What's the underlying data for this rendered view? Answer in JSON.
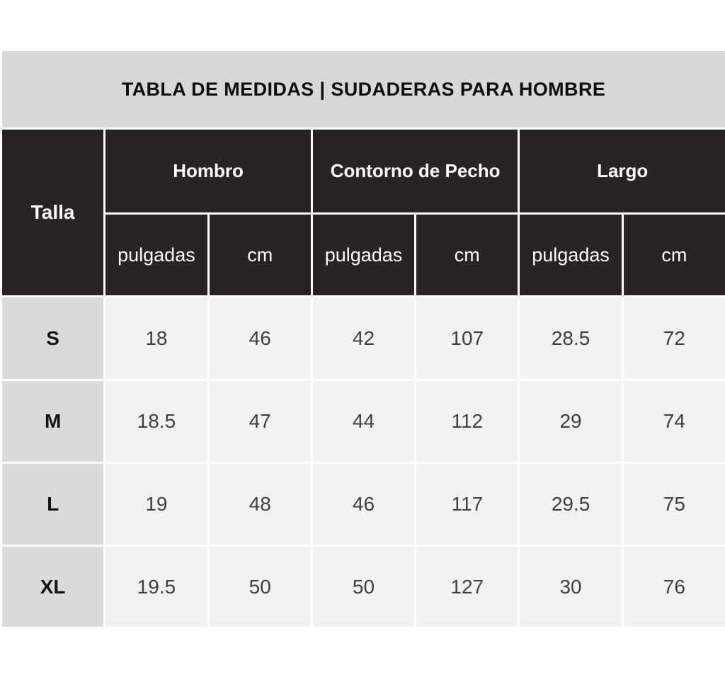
{
  "title": "TABLA DE MEDIDAS | SUDADERAS PARA HOMBRE",
  "table": {
    "corner_label": "Talla",
    "groups": [
      {
        "label": "Hombro"
      },
      {
        "label": "Contorno de Pecho"
      },
      {
        "label": "Largo"
      }
    ],
    "unit_labels": [
      "pulgadas",
      "cm",
      "pulgadas",
      "cm",
      "pulgadas",
      "cm"
    ],
    "rows": [
      {
        "size": "S",
        "values": [
          "18",
          "46",
          "42",
          "107",
          "28.5",
          "72"
        ]
      },
      {
        "size": "M",
        "values": [
          "18.5",
          "47",
          "44",
          "112",
          "29",
          "74"
        ]
      },
      {
        "size": "L",
        "values": [
          "19",
          "48",
          "46",
          "117",
          "29.5",
          "75"
        ]
      },
      {
        "size": "XL",
        "values": [
          "19.5",
          "50",
          "50",
          "127",
          "30",
          "76"
        ]
      }
    ]
  },
  "chart_data": {
    "type": "table",
    "title": "TABLA DE MEDIDAS | SUDADERAS PARA HOMBRE",
    "column_groups": [
      "Hombro",
      "Contorno de Pecho",
      "Largo"
    ],
    "columns": [
      "Talla",
      "Hombro pulgadas",
      "Hombro cm",
      "Contorno de Pecho pulgadas",
      "Contorno de Pecho cm",
      "Largo pulgadas",
      "Largo cm"
    ],
    "rows": [
      [
        "S",
        18,
        46,
        42,
        107,
        28.5,
        72
      ],
      [
        "M",
        18.5,
        47,
        44,
        112,
        29,
        74
      ],
      [
        "L",
        19,
        48,
        46,
        117,
        29.5,
        75
      ],
      [
        "XL",
        19.5,
        50,
        50,
        127,
        30,
        76
      ]
    ]
  },
  "colors": {
    "header_bg": "#282425",
    "title_bg": "#d8d8d8",
    "size_col_bg": "#dadada",
    "cell_bg": "#f2f2f2",
    "header_text": "#fdfdfd",
    "value_text": "#3f3f3f"
  }
}
